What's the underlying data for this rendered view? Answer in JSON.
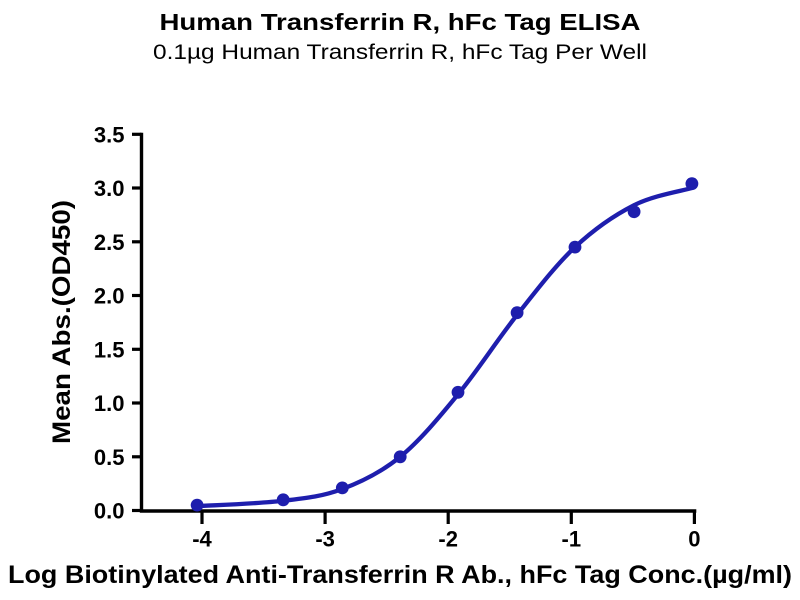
{
  "chart_data": {
    "type": "scatter",
    "title": "Human Transferrin R, hFc Tag ELISA",
    "subtitle": "0.1µg Human Transferrin R, hFc Tag Per Well",
    "xlabel": "Log Biotinylated Anti-Transferrin R Ab., hFc Tag Conc.(µg/ml)",
    "ylabel": "Mean Abs.(OD450)",
    "xlim": [
      -4.6,
      0.02
    ],
    "ylim": [
      0.0,
      3.5
    ],
    "x_ticks": [
      "-4",
      "-3",
      "-2",
      "-1",
      "0"
    ],
    "y_ticks": [
      "0.0",
      "0.5",
      "1.0",
      "1.5",
      "2.0",
      "2.5",
      "3.0",
      "3.5"
    ],
    "grid": false,
    "legend": "none",
    "axis_color": "#000000",
    "series": [
      {
        "name": "Biotinylated Anti-Transferrin R Ab., hFc Tag",
        "marker": "circle",
        "color": "#1e1ead",
        "x": [
          -4.04,
          -3.34,
          -2.86,
          -2.39,
          -1.92,
          -1.44,
          -0.97,
          -0.49,
          -0.02
        ],
        "y": [
          0.05,
          0.1,
          0.21,
          0.5,
          1.1,
          1.84,
          2.45,
          2.78,
          3.04
        ],
        "fit_curve": {
          "description": "4PL sigmoidal dose-response fit",
          "x": [
            -4.04,
            -3.34,
            -2.86,
            -2.39,
            -1.92,
            -1.44,
            -0.97,
            -0.49,
            -0.02
          ],
          "y": [
            0.04,
            0.09,
            0.2,
            0.5,
            1.08,
            1.82,
            2.45,
            2.84,
            3.0
          ]
        }
      }
    ]
  }
}
